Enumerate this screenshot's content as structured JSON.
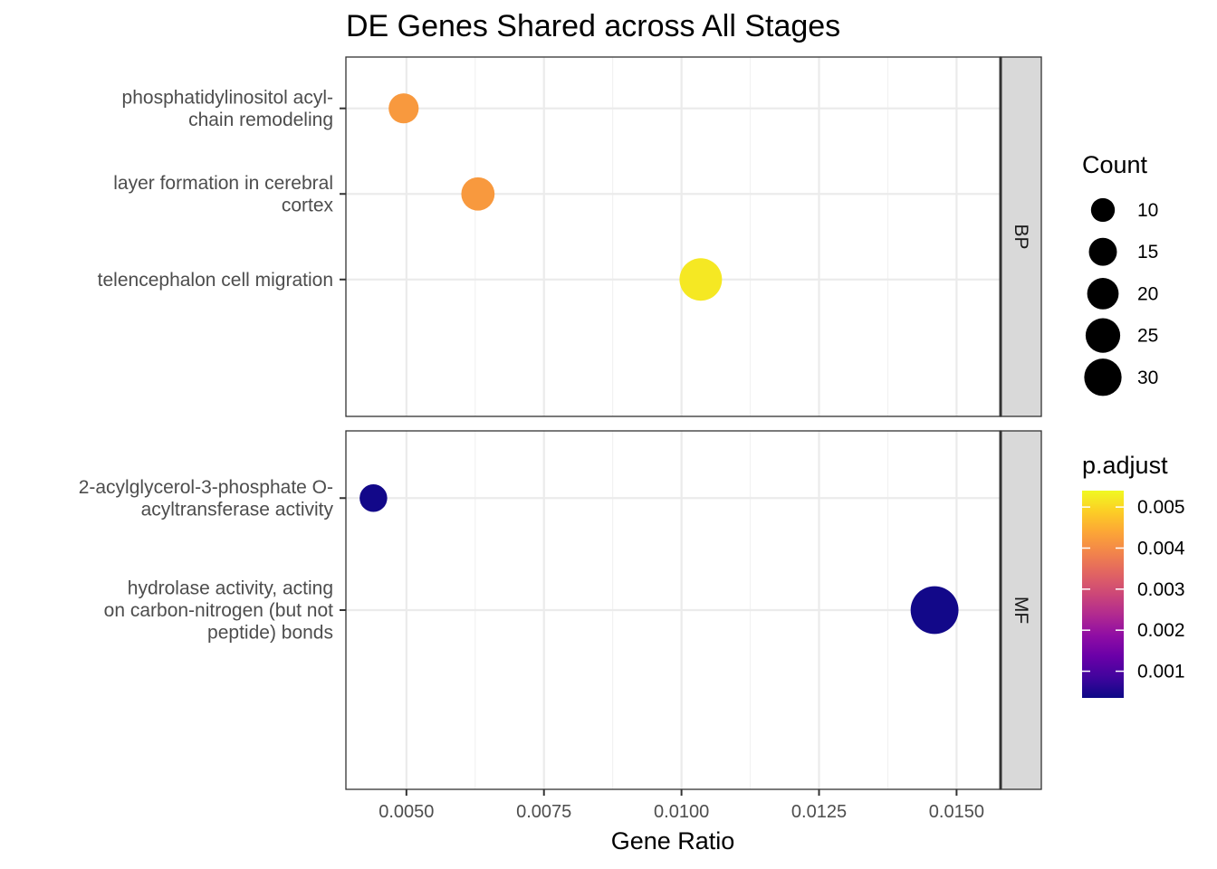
{
  "chart_data": {
    "type": "scatter",
    "title": "DE Genes Shared across All Stages",
    "xlabel": "Gene Ratio",
    "ylabel": "",
    "xlim": [
      0.0039,
      0.0158
    ],
    "xticks": [
      0.005,
      0.0075,
      0.01,
      0.0125,
      0.015
    ],
    "xtick_labels": [
      "0.0050",
      "0.0075",
      "0.0100",
      "0.0125",
      "0.0150"
    ],
    "grid": true,
    "legend_position": "right",
    "facets": [
      {
        "name": "BP",
        "categories": [
          [
            "phosphatidylinositol acyl-",
            "chain remodeling"
          ],
          [
            "layer formation in cerebral",
            "cortex"
          ],
          [
            "telencephalon cell migration"
          ]
        ],
        "points": [
          {
            "x": 0.00495,
            "count": 13,
            "p_adjust": 0.0042
          },
          {
            "x": 0.0063,
            "count": 16,
            "p_adjust": 0.0042
          },
          {
            "x": 0.01035,
            "count": 26,
            "p_adjust": 0.0052
          }
        ]
      },
      {
        "name": "MF",
        "categories": [
          [
            "2-acylglycerol-3-phosphate O-",
            "acyltransferase activity"
          ],
          [
            "hydrolase activity, acting",
            "on carbon-nitrogen (but not",
            "peptide) bonds"
          ]
        ],
        "points": [
          {
            "x": 0.0044,
            "count": 11,
            "p_adjust": 0.0004
          },
          {
            "x": 0.0146,
            "count": 33,
            "p_adjust": 0.0004
          }
        ]
      }
    ],
    "size_legend": {
      "title": "Count",
      "values": [
        10,
        15,
        20,
        25,
        30
      ],
      "labels": [
        "10",
        "15",
        "20",
        "25",
        "30"
      ]
    },
    "color_legend": {
      "title": "p.adjust",
      "range": [
        0.00035,
        0.0054
      ],
      "ticks": [
        0.005,
        0.004,
        0.003,
        0.002,
        0.001
      ],
      "labels": [
        "0.005",
        "0.004",
        "0.003",
        "0.002",
        "0.001"
      ],
      "colormap": [
        "#0d0887",
        "#41049d",
        "#6a00a8",
        "#8f0da4",
        "#b12a90",
        "#cc4778",
        "#e16462",
        "#f2844b",
        "#fca636",
        "#fcce25",
        "#f0f921"
      ]
    }
  }
}
